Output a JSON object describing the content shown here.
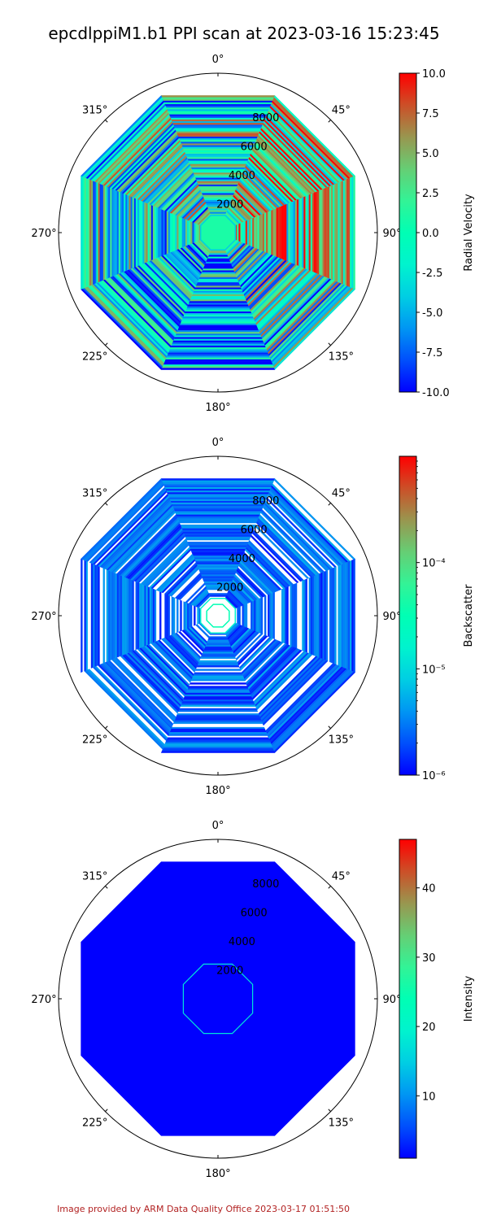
{
  "title": "epcdlppiM1.b1 PPI scan at 2023-03-16 15:23:45",
  "footer": "Image provided by ARM Data Quality Office 2023-03-17 01:51:50",
  "chart_data": [
    {
      "type": "polar-heatmap",
      "angle_direction": "clockwise",
      "zero_location": "N",
      "angle_ticks": [
        "0°",
        "45°",
        "90°",
        "135°",
        "180°",
        "225°",
        "270°",
        "315°"
      ],
      "radial_ticks": [
        "2000",
        "4000",
        "6000",
        "8000"
      ],
      "radial_tick_values": [
        2000,
        4000,
        6000,
        8000
      ],
      "rmax": 10200,
      "scan_rmax": 9500,
      "colormap": "rainbow",
      "colorbar": {
        "label": "Radial Velocity",
        "scale": "linear",
        "range": [
          -10.0,
          10.0
        ],
        "ticks": [
          "-10.0",
          "-7.5",
          "-5.0",
          "-2.5",
          "0.0",
          "2.5",
          "5.0",
          "7.5",
          "10.0"
        ],
        "tick_values": [
          -10.0,
          -7.5,
          -5.0,
          -2.5,
          0.0,
          2.5,
          5.0,
          7.5,
          10.0
        ]
      }
    },
    {
      "type": "polar-heatmap",
      "angle_direction": "clockwise",
      "zero_location": "N",
      "angle_ticks": [
        "0°",
        "45°",
        "90°",
        "135°",
        "180°",
        "225°",
        "270°",
        "315°"
      ],
      "radial_ticks": [
        "2000",
        "4000",
        "6000",
        "8000"
      ],
      "radial_tick_values": [
        2000,
        4000,
        6000,
        8000
      ],
      "rmax": 10200,
      "scan_rmax": 9500,
      "colormap": "rainbow",
      "colorbar": {
        "label": "Backscatter",
        "scale": "log",
        "range": [
          1e-06,
          0.001
        ],
        "ticks": [
          "10⁻⁶",
          "10⁻⁵",
          "10⁻⁴"
        ],
        "tick_values": [
          1e-06,
          1e-05,
          0.0001
        ]
      }
    },
    {
      "type": "polar-heatmap",
      "angle_direction": "clockwise",
      "zero_location": "N",
      "angle_ticks": [
        "0°",
        "45°",
        "90°",
        "135°",
        "180°",
        "225°",
        "270°",
        "315°"
      ],
      "radial_ticks": [
        "2000",
        "4000",
        "6000",
        "8000"
      ],
      "radial_tick_values": [
        2000,
        4000,
        6000,
        8000
      ],
      "rmax": 10200,
      "scan_rmax": 9500,
      "colormap": "rainbow",
      "colorbar": {
        "label": "Intensity",
        "scale": "linear",
        "range": [
          1,
          47
        ],
        "ticks": [
          "10",
          "20",
          "30",
          "40"
        ],
        "tick_values": [
          10,
          20,
          30,
          40
        ]
      }
    }
  ]
}
